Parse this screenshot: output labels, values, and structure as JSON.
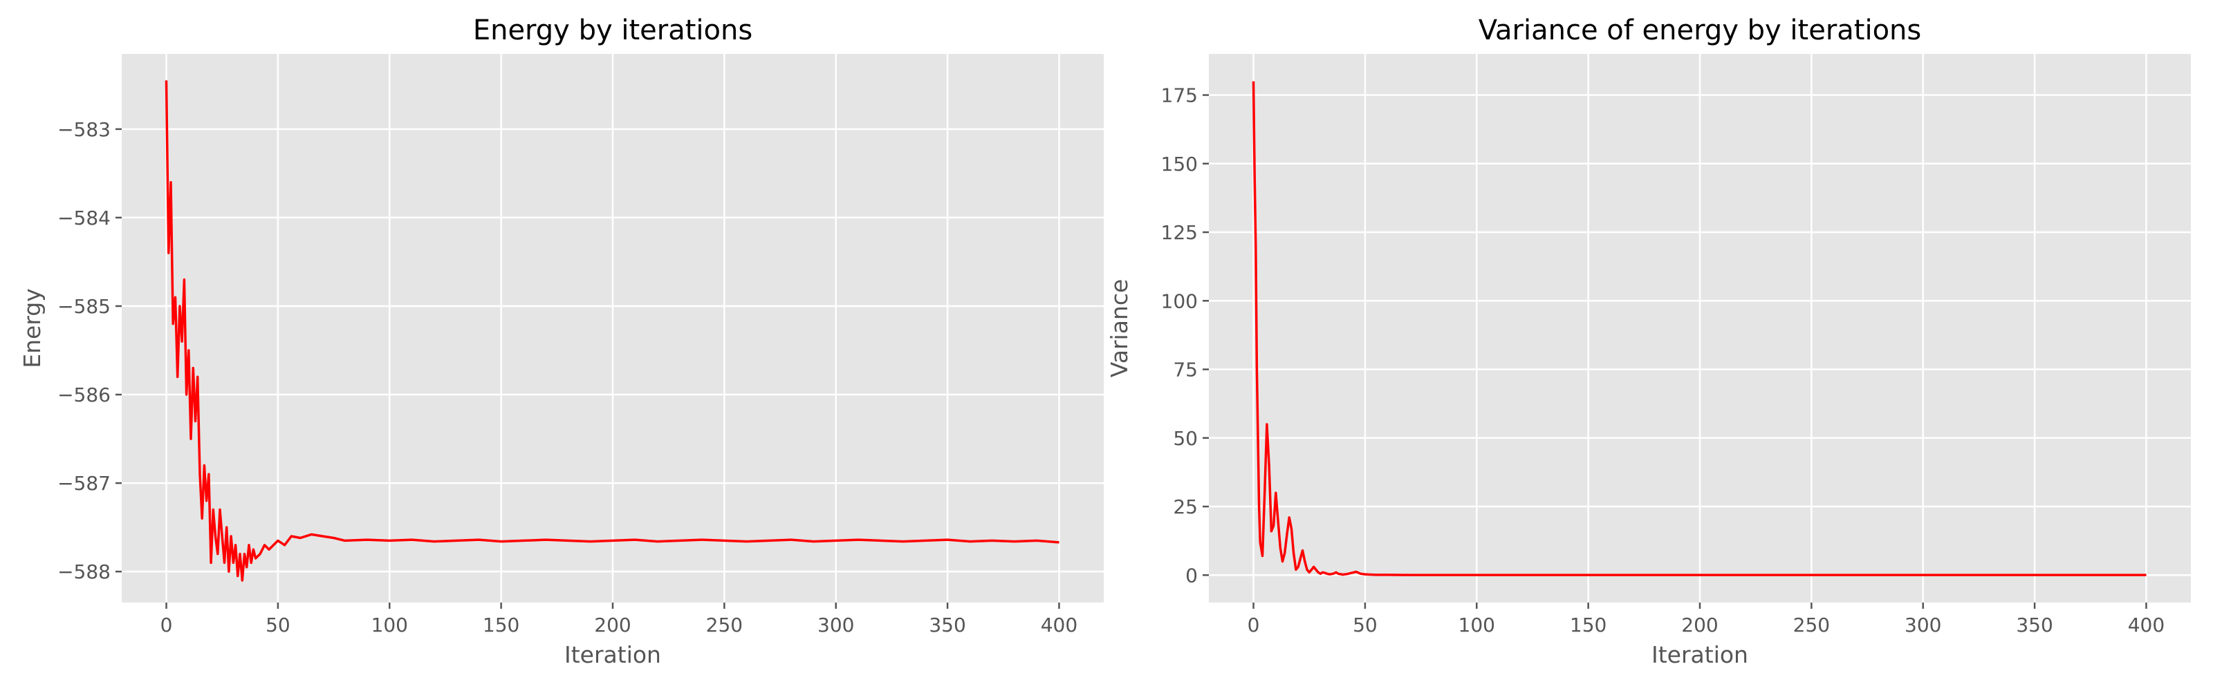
{
  "chart_data": [
    {
      "type": "line",
      "title": "Energy by iterations",
      "xlabel": "Iteration",
      "ylabel": "Energy",
      "xlim": [
        -20,
        420
      ],
      "ylim": [
        -588.35,
        -582.15
      ],
      "xticks": [
        0,
        50,
        100,
        150,
        200,
        250,
        300,
        350,
        400
      ],
      "yticks": [
        -583,
        -584,
        -585,
        -586,
        -587,
        -588
      ],
      "ytick_labels": [
        "−583",
        "−584",
        "−585",
        "−586",
        "−587",
        "−588"
      ],
      "grid": true,
      "series_color": "#ff0000",
      "series": [
        {
          "x": [
            0,
            1,
            2,
            3,
            4,
            5,
            6,
            7,
            8,
            9,
            10,
            11,
            12,
            13,
            14,
            15,
            16,
            17,
            18,
            19,
            20,
            21,
            22,
            23,
            24,
            25,
            26,
            27,
            28,
            29,
            30,
            31,
            32,
            33,
            34,
            35,
            36,
            37,
            38,
            39,
            40,
            42,
            44,
            46,
            48,
            50,
            53,
            56,
            60,
            65,
            70,
            75,
            80,
            90,
            100,
            110,
            120,
            130,
            140,
            150,
            160,
            170,
            180,
            190,
            200,
            210,
            220,
            230,
            240,
            250,
            260,
            270,
            280,
            290,
            300,
            310,
            320,
            330,
            340,
            350,
            360,
            370,
            380,
            390,
            400
          ],
          "y": [
            -582.45,
            -584.4,
            -583.6,
            -585.2,
            -584.9,
            -585.8,
            -585.0,
            -585.4,
            -584.7,
            -586.0,
            -585.5,
            -586.5,
            -585.7,
            -586.3,
            -585.8,
            -586.9,
            -587.4,
            -586.8,
            -587.2,
            -586.9,
            -587.9,
            -587.3,
            -587.6,
            -587.8,
            -587.3,
            -587.6,
            -587.9,
            -587.5,
            -588.0,
            -587.6,
            -587.9,
            -587.7,
            -588.05,
            -587.8,
            -588.1,
            -587.8,
            -587.95,
            -587.7,
            -587.9,
            -587.75,
            -587.85,
            -587.8,
            -587.7,
            -587.75,
            -587.7,
            -587.65,
            -587.7,
            -587.6,
            -587.62,
            -587.58,
            -587.6,
            -587.62,
            -587.65,
            -587.64,
            -587.65,
            -587.64,
            -587.66,
            -587.65,
            -587.64,
            -587.66,
            -587.65,
            -587.64,
            -587.65,
            -587.66,
            -587.65,
            -587.64,
            -587.66,
            -587.65,
            -587.64,
            -587.65,
            -587.66,
            -587.65,
            -587.64,
            -587.66,
            -587.65,
            -587.64,
            -587.65,
            -587.66,
            -587.65,
            -587.64,
            -587.66,
            -587.65,
            -587.66,
            -587.65,
            -587.67
          ]
        }
      ]
    },
    {
      "type": "line",
      "title": "Variance of energy by iterations",
      "xlabel": "Iteration",
      "ylabel": "Variance",
      "xlim": [
        -20,
        420
      ],
      "ylim": [
        -10,
        190
      ],
      "xticks": [
        0,
        50,
        100,
        150,
        200,
        250,
        300,
        350,
        400
      ],
      "yticks": [
        0,
        25,
        50,
        75,
        100,
        125,
        150,
        175
      ],
      "grid": true,
      "series_color": "#ff0000",
      "series": [
        {
          "x": [
            0,
            0.5,
            1,
            1.5,
            2,
            2.5,
            3,
            4,
            5,
            6,
            7,
            8,
            9,
            10,
            11,
            12,
            13,
            14,
            15,
            16,
            17,
            18,
            19,
            20,
            21,
            22,
            23,
            24,
            25,
            26,
            27,
            28,
            29,
            30,
            31,
            32,
            33,
            34,
            35,
            36,
            37,
            38,
            40,
            42,
            44,
            46,
            48,
            50,
            52,
            55,
            60,
            70,
            80,
            100,
            150,
            200,
            250,
            300,
            350,
            400
          ],
          "y": [
            180,
            145,
            120,
            75,
            50,
            25,
            12,
            7,
            30,
            55,
            40,
            16,
            18,
            30,
            20,
            10,
            5,
            8,
            15,
            21,
            17,
            8,
            2,
            3,
            6,
            9,
            5,
            2,
            1,
            2,
            3,
            2,
            1,
            0.5,
            1,
            0.8,
            0.5,
            0.3,
            0.4,
            0.6,
            1,
            0.5,
            0.2,
            0.4,
            0.8,
            1.2,
            0.5,
            0.3,
            0.2,
            0.1,
            0.1,
            0.05,
            0.05,
            0.05,
            0.05,
            0.05,
            0.05,
            0.05,
            0.05,
            0.05
          ]
        }
      ]
    }
  ]
}
